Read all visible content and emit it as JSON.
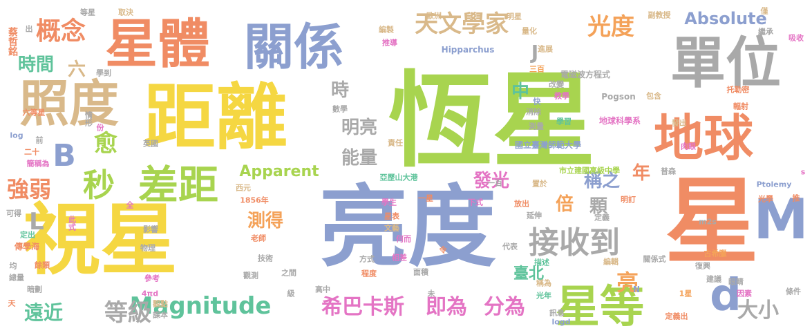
{
  "palette": {
    "green": "#9ACD32",
    "salmon": "#F08C64",
    "blue": "#8C9FCF",
    "yellow": "#F5D742",
    "tan": "#D9B98A",
    "gray": "#A9A9A9",
    "teal": "#5FC39B",
    "pink": "#E474C4",
    "lightgreen": "#A8D44F",
    "orange": "#F4A259"
  },
  "words": [
    {
      "text": "恆星",
      "color": "lightgreen"
    },
    {
      "text": "亮度",
      "color": "blue"
    },
    {
      "text": "視星",
      "color": "yellow"
    },
    {
      "text": "距離",
      "color": "yellow"
    },
    {
      "text": "星體",
      "color": "salmon"
    },
    {
      "text": "關係",
      "color": "blue"
    },
    {
      "text": "照度",
      "color": "tan"
    },
    {
      "text": "單位",
      "color": "gray"
    },
    {
      "text": "地球",
      "color": "salmon"
    },
    {
      "text": "星",
      "color": "salmon"
    },
    {
      "text": "M",
      "color": "blue"
    },
    {
      "text": "星等",
      "color": "lightgreen"
    },
    {
      "text": "d",
      "color": "blue"
    },
    {
      "text": "差距",
      "color": "lightgreen"
    },
    {
      "text": "接收到",
      "color": "gray"
    },
    {
      "text": "Magnitude",
      "color": "teal"
    },
    {
      "text": "希巴卡斯",
      "color": "pink"
    },
    {
      "text": "即為",
      "color": "pink"
    },
    {
      "text": "分為",
      "color": "pink"
    },
    {
      "text": "天文學家",
      "color": "tan"
    },
    {
      "text": "光度",
      "color": "orange"
    },
    {
      "text": "Absolute",
      "color": "blue"
    },
    {
      "text": "概念",
      "color": "salmon"
    },
    {
      "text": "時間",
      "color": "teal"
    },
    {
      "text": "秒",
      "color": "lightgreen"
    },
    {
      "text": "愈",
      "color": "lightgreen"
    },
    {
      "text": "B",
      "color": "blue"
    },
    {
      "text": "強弱",
      "color": "salmon"
    },
    {
      "text": "遠近",
      "color": "teal"
    },
    {
      "text": "等級",
      "color": "gray"
    },
    {
      "text": "明亮",
      "color": "gray"
    },
    {
      "text": "能量",
      "color": "gray"
    },
    {
      "text": "時",
      "color": "gray"
    },
    {
      "text": "中",
      "color": "teal"
    },
    {
      "text": "Apparent",
      "color": "lightgreen"
    },
    {
      "text": "發光",
      "color": "pink"
    },
    {
      "text": "測得",
      "color": "orange"
    },
    {
      "text": "倍",
      "color": "orange"
    },
    {
      "text": "顆",
      "color": "gray"
    },
    {
      "text": "稱之",
      "color": "blue"
    },
    {
      "text": "年",
      "color": "salmon"
    },
    {
      "text": "亮",
      "color": "orange"
    },
    {
      "text": "大小",
      "color": "gray"
    },
    {
      "text": "臺北",
      "color": "teal"
    },
    {
      "text": "六",
      "color": "tan"
    },
    {
      "text": "L",
      "color": "gray"
    },
    {
      "text": "J",
      "color": "gray"
    },
    {
      "text": "蔡哲銘",
      "color": "salmon"
    },
    {
      "text": "等星",
      "color": "gray"
    },
    {
      "text": "取決",
      "color": "tan"
    },
    {
      "text": "歐洲",
      "color": "tan"
    },
    {
      "text": "明星",
      "color": "tan"
    },
    {
      "text": "副教授",
      "color": "tan"
    },
    {
      "text": "僅",
      "color": "tan"
    },
    {
      "text": "繼承",
      "color": "gray"
    },
    {
      "text": "吸收",
      "color": "pink"
    },
    {
      "text": "編製",
      "color": "tan"
    },
    {
      "text": "推導",
      "color": "pink"
    },
    {
      "text": "量化",
      "color": "tan"
    },
    {
      "text": "Hipparchus",
      "color": "blue"
    },
    {
      "text": "進展",
      "color": "tan"
    },
    {
      "text": "三百",
      "color": "orange"
    },
    {
      "text": "電磁波方程式",
      "color": "gray"
    },
    {
      "text": "學到",
      "color": "gray"
    },
    {
      "text": "改變",
      "color": "gray"
    },
    {
      "text": "教學",
      "color": "pink"
    },
    {
      "text": "Pogson",
      "color": "gray"
    },
    {
      "text": "包含",
      "color": "tan"
    },
    {
      "text": "托勒密",
      "color": "salmon"
    },
    {
      "text": "輻射",
      "color": "salmon"
    },
    {
      "text": "六等星",
      "color": "salmon"
    },
    {
      "text": "數學",
      "color": "gray"
    },
    {
      "text": "消除",
      "color": "gray"
    },
    {
      "text": "學習",
      "color": "teal"
    },
    {
      "text": "地球科學系",
      "color": "pink"
    },
    {
      "text": "情形",
      "color": "gray"
    },
    {
      "text": "測量",
      "color": "gray"
    },
    {
      "text": "發出",
      "color": "tan"
    },
    {
      "text": "log",
      "color": "blue"
    },
    {
      "text": "英國",
      "color": "gray"
    },
    {
      "text": "責任",
      "color": "tan"
    },
    {
      "text": "國立臺灣師範大學",
      "color": "blue"
    },
    {
      "text": "肉眼",
      "color": "pink"
    },
    {
      "text": "二十",
      "color": "salmon"
    },
    {
      "text": "簡稱為",
      "color": "pink"
    },
    {
      "text": "市立建國高級中學",
      "color": "lightgreen"
    },
    {
      "text": "普森",
      "color": "gray"
    },
    {
      "text": "亞歷山大港",
      "color": "teal"
    },
    {
      "text": "一百",
      "color": "gray"
    },
    {
      "text": "置於",
      "color": "tan"
    },
    {
      "text": "Ptolemy",
      "color": "blue"
    },
    {
      "text": "西元",
      "color": "tan"
    },
    {
      "text": "1856年",
      "color": "salmon"
    },
    {
      "text": "學生",
      "color": "pink"
    },
    {
      "text": "下式",
      "color": "pink"
    },
    {
      "text": "放出",
      "color": "salmon"
    },
    {
      "text": "明訂",
      "color": "salmon"
    },
    {
      "text": "光學",
      "color": "salmon"
    },
    {
      "text": "推",
      "color": "salmon"
    },
    {
      "text": "可得",
      "color": "gray"
    },
    {
      "text": "此式",
      "color": "pink"
    },
    {
      "text": "影響",
      "color": "gray"
    },
    {
      "text": "星表",
      "color": "salmon"
    },
    {
      "text": "文藝",
      "color": "tan"
    },
    {
      "text": "延伸",
      "color": "gray"
    },
    {
      "text": "定義",
      "color": "gray"
    },
    {
      "text": "m2s",
      "color": "gray"
    },
    {
      "text": "傳學海",
      "color": "salmon"
    },
    {
      "text": "定出",
      "color": "teal"
    },
    {
      "text": "物理",
      "color": "gray"
    },
    {
      "text": "老師",
      "color": "salmon"
    },
    {
      "text": "何而",
      "color": "pink"
    },
    {
      "text": "代表",
      "color": "gray"
    },
    {
      "text": "描述",
      "color": "teal"
    },
    {
      "text": "關係式",
      "color": "gray"
    },
    {
      "text": "復興",
      "color": "gray"
    },
    {
      "text": "古希臘",
      "color": "orange"
    },
    {
      "text": "均",
      "color": "gray"
    },
    {
      "text": "餘類",
      "color": "salmon"
    },
    {
      "text": "總量",
      "color": "gray"
    },
    {
      "text": "技術",
      "color": "gray"
    },
    {
      "text": "方式",
      "color": "gray"
    },
    {
      "text": "相差",
      "color": "pink"
    },
    {
      "text": "觀測",
      "color": "gray"
    },
    {
      "text": "之間",
      "color": "gray"
    },
    {
      "text": "程度",
      "color": "salmon"
    },
    {
      "text": "面積",
      "color": "gray"
    },
    {
      "text": "稱為",
      "color": "tan"
    },
    {
      "text": "編輯",
      "color": "tan"
    },
    {
      "text": "暗劃",
      "color": "gray"
    },
    {
      "text": "參考",
      "color": "pink"
    },
    {
      "text": "高中",
      "color": "gray"
    },
    {
      "text": "建議",
      "color": "gray"
    },
    {
      "text": "眼睛",
      "color": "gray"
    },
    {
      "text": "條件",
      "color": "gray"
    },
    {
      "text": "天",
      "color": "salmon"
    },
    {
      "text": "4πd",
      "color": "pink"
    },
    {
      "text": "觀點",
      "color": "tan"
    },
    {
      "text": "課本",
      "color": "gray"
    },
    {
      "text": "級",
      "color": "gray"
    },
    {
      "text": "未",
      "color": "gray"
    },
    {
      "text": "光年",
      "color": "teal"
    },
    {
      "text": "N",
      "color": "blue"
    },
    {
      "text": "1星",
      "color": "orange"
    },
    {
      "text": "因素",
      "color": "pink"
    },
    {
      "text": "訊息",
      "color": "gray"
    },
    {
      "text": "logd",
      "color": "blue"
    },
    {
      "text": "定義出",
      "color": "salmon"
    },
    {
      "text": "出",
      "color": "gray"
    },
    {
      "text": "前",
      "color": "gray"
    },
    {
      "text": "份",
      "color": "pink"
    },
    {
      "text": "全",
      "color": "pink"
    },
    {
      "text": "快",
      "color": "blue"
    },
    {
      "text": "令",
      "color": "salmon"
    },
    {
      "text": "一星",
      "color": "salmon"
    },
    {
      "text": "s",
      "color": "pink"
    }
  ]
}
